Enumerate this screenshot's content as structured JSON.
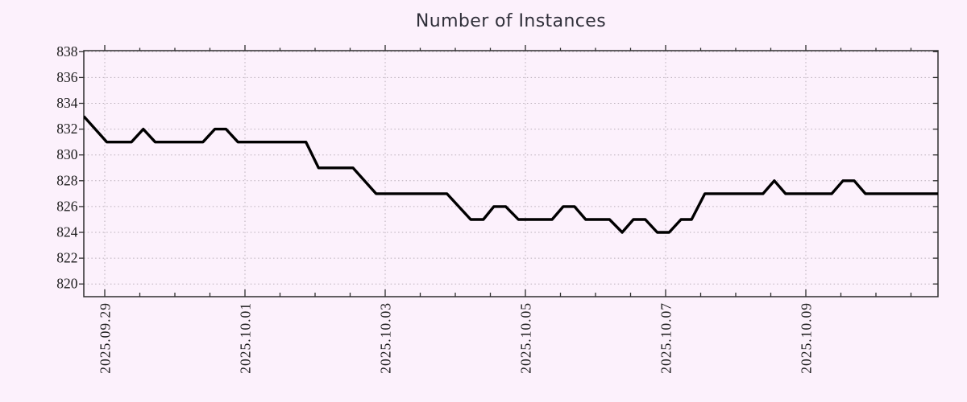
{
  "title": "Number of Instances",
  "chart_data": {
    "type": "line",
    "title": "Number of Instances",
    "x_axis": {
      "tick_labels": [
        "2025.09.29",
        "2025.10.01",
        "2025.10.03",
        "2025.10.05",
        "2025.10.07",
        "2025.10.09"
      ],
      "tick_positions_days": [
        0,
        2,
        4,
        6,
        8,
        10
      ],
      "minor_tick_interval_days": 0.5,
      "range_days": [
        -0.3,
        11.9
      ],
      "points_unit": "days_since_2025.09.29"
    },
    "y_axis": {
      "tick_values": [
        820,
        822,
        824,
        826,
        828,
        830,
        832,
        834,
        836,
        838
      ],
      "range": [
        819.0,
        838.1
      ]
    },
    "grid": {
      "style": "dotted",
      "x_major": true,
      "y_major": true
    },
    "legend": "none",
    "series": [
      {
        "name": "Number of Instances",
        "color": "#000000",
        "points": [
          [
            -0.3,
            833
          ],
          [
            0.03,
            831
          ],
          [
            0.38,
            831
          ],
          [
            0.55,
            832
          ],
          [
            0.72,
            831
          ],
          [
            1.4,
            831
          ],
          [
            1.57,
            832
          ],
          [
            1.73,
            832
          ],
          [
            1.9,
            831
          ],
          [
            2.87,
            831
          ],
          [
            3.05,
            829
          ],
          [
            3.54,
            829
          ],
          [
            3.87,
            827
          ],
          [
            4.88,
            827
          ],
          [
            5.22,
            825
          ],
          [
            5.4,
            825
          ],
          [
            5.55,
            826
          ],
          [
            5.72,
            826
          ],
          [
            5.9,
            825
          ],
          [
            6.38,
            825
          ],
          [
            6.54,
            826
          ],
          [
            6.7,
            826
          ],
          [
            6.86,
            825
          ],
          [
            7.2,
            825
          ],
          [
            7.38,
            824
          ],
          [
            7.54,
            825
          ],
          [
            7.71,
            825
          ],
          [
            7.88,
            824
          ],
          [
            8.05,
            824
          ],
          [
            8.22,
            825
          ],
          [
            8.37,
            825
          ],
          [
            8.56,
            827
          ],
          [
            9.39,
            827
          ],
          [
            9.55,
            828
          ],
          [
            9.71,
            827
          ],
          [
            10.37,
            827
          ],
          [
            10.53,
            828
          ],
          [
            10.69,
            828
          ],
          [
            10.85,
            827
          ],
          [
            11.9,
            827
          ]
        ]
      }
    ],
    "colors": {
      "background": "#fcf1fc",
      "grid": "#b9afb9",
      "frame": "#2e2e2e",
      "line": "#000000",
      "text": "#1c1c1c",
      "title": "#30303a"
    }
  }
}
